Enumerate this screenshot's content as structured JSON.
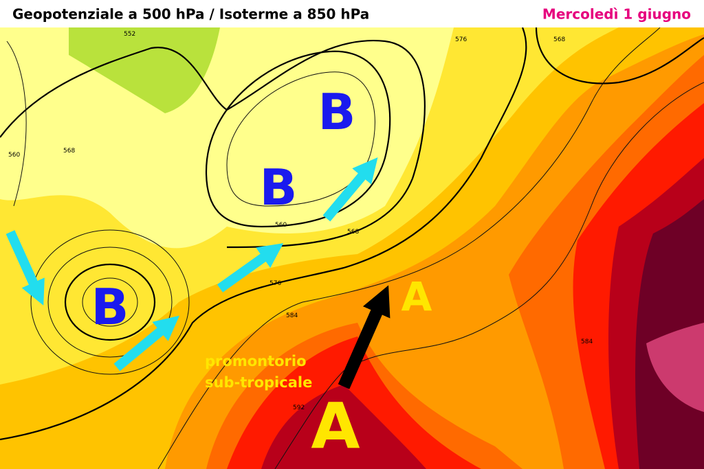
{
  "header": {
    "title": "Geopotenziale a 500 hPa / Isoterme a 850 hPa",
    "date": "Mercoledì 1 giugno"
  },
  "pressure_centers": [
    "B",
    "B",
    "B",
    "A",
    "A"
  ],
  "annotation": [
    "promontorio",
    "sub-tropicale"
  ],
  "contour_labels": [
    "552",
    "560",
    "568",
    "576",
    "584",
    "592"
  ]
}
